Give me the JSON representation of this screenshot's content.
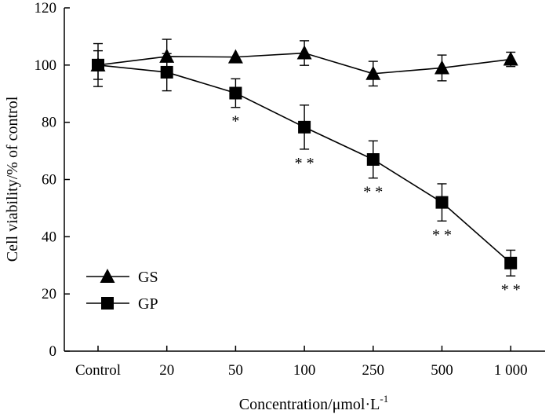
{
  "chart_data": {
    "type": "line",
    "title": "",
    "xlabel": "Concentration/μmol·L",
    "xlabel_superscript": "-1",
    "ylabel": "Cell viability/% of control",
    "categories": [
      "Control",
      "20",
      "50",
      "100",
      "250",
      "500",
      "1 000"
    ],
    "ylim": [
      0,
      120
    ],
    "yticks": [
      0,
      20,
      40,
      60,
      80,
      100,
      120
    ],
    "grid": false,
    "legend_position": "left",
    "series": [
      {
        "name": "GS",
        "marker": "triangle",
        "values": [
          100,
          103,
          102.8,
          104.2,
          97,
          99,
          102
        ],
        "errors": [
          7.5,
          6,
          0,
          4.3,
          4.3,
          4.5,
          2.5
        ],
        "significance": [
          "",
          "",
          "",
          "",
          "",
          "",
          ""
        ]
      },
      {
        "name": "GP",
        "marker": "square",
        "values": [
          100,
          97.5,
          90.2,
          78.3,
          67,
          52,
          30.8
        ],
        "errors": [
          5,
          6.5,
          5,
          7.7,
          6.5,
          6.5,
          4.5
        ],
        "significance": [
          "",
          "",
          "*",
          "**",
          "**",
          "**",
          "**"
        ]
      }
    ]
  }
}
